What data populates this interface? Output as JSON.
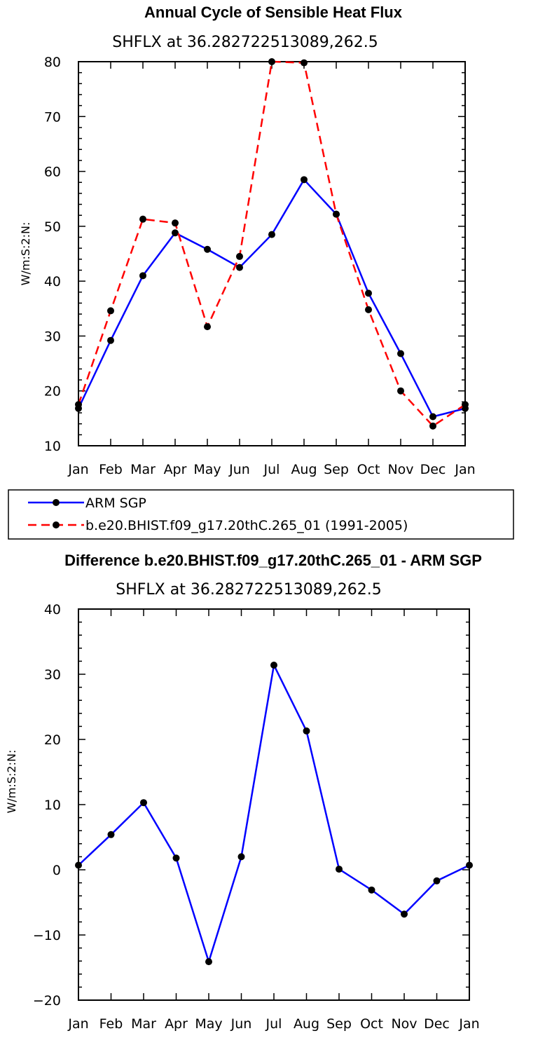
{
  "chart_data": [
    {
      "type": "line",
      "title": "Annual Cycle of Sensible Heat Flux",
      "subtitle": "SHFLX at 36.282722513089,262.5",
      "xlabel": "",
      "ylabel": "W/m:S:2:N:",
      "categories": [
        "Jan",
        "Feb",
        "Mar",
        "Apr",
        "May",
        "Jun",
        "Jul",
        "Aug",
        "Sep",
        "Oct",
        "Nov",
        "Dec",
        "Jan"
      ],
      "ylim": [
        10,
        80
      ],
      "yticks": [
        10,
        20,
        30,
        40,
        50,
        60,
        70,
        80
      ],
      "series": [
        {
          "name": "ARM SGP",
          "color": "#0000ff",
          "dash": "solid",
          "values": [
            16.8,
            29.2,
            41.0,
            48.8,
            45.8,
            42.5,
            48.5,
            58.5,
            52.2,
            37.8,
            26.8,
            15.3,
            16.8
          ]
        },
        {
          "name": "b.e20.BHIST.f09_g17.20thC.265_01 (1991-2005)",
          "color": "#ff0000",
          "dash": "dashed",
          "values": [
            17.5,
            34.6,
            51.3,
            50.6,
            31.7,
            44.5,
            80.0,
            79.8,
            52.2,
            34.8,
            20.0,
            13.6,
            17.5
          ]
        }
      ],
      "legend_position": "bottom-left"
    },
    {
      "type": "line",
      "title": "Difference b.e20.BHIST.f09_g17.20thC.265_01 - ARM SGP",
      "subtitle": "SHFLX at 36.282722513089,262.5",
      "xlabel": "",
      "ylabel": "W/m:S:2:N:",
      "categories": [
        "Jan",
        "Feb",
        "Mar",
        "Apr",
        "May",
        "Jun",
        "Jul",
        "Aug",
        "Sep",
        "Oct",
        "Nov",
        "Dec",
        "Jan"
      ],
      "ylim": [
        -20,
        40
      ],
      "yticks": [
        -20,
        -10,
        0,
        10,
        20,
        30,
        40
      ],
      "series": [
        {
          "name": "Difference",
          "color": "#0000ff",
          "dash": "solid",
          "values": [
            0.7,
            5.4,
            10.3,
            1.8,
            -14.1,
            2.0,
            31.4,
            21.3,
            0.1,
            -3.1,
            -6.8,
            -1.7,
            0.7
          ]
        }
      ]
    }
  ]
}
